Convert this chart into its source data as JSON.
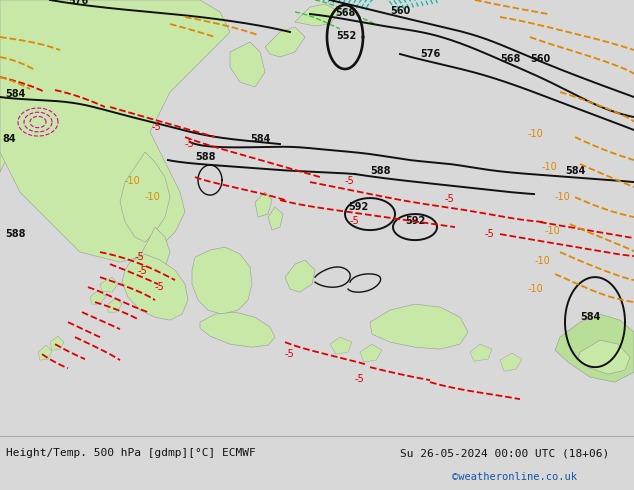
{
  "bg_color": "#d8d8d8",
  "map_bg_color": "#c8c8c8",
  "bottom_bar_color": "#e8e8e8",
  "bottom_text_left": "Height/Temp. 500 hPa [gdmp][°C] ECMWF",
  "bottom_text_right": "Su 26-05-2024 00:00 UTC (18+06)",
  "bottom_text_url": "©weatheronline.co.uk",
  "bottom_text_color": "#111111",
  "url_color": "#1155aa",
  "fig_width": 6.34,
  "fig_height": 4.9,
  "dpi": 100,
  "land_green": "#c8e8a8",
  "land_green2": "#b8de98",
  "land_gray": "#b8b8b8",
  "contour_black": "#111111",
  "contour_red": "#dd0000",
  "contour_orange": "#dd8800",
  "contour_cyan": "#00bbaa",
  "contour_green": "#44bb44",
  "contour_magenta": "#dd00aa"
}
